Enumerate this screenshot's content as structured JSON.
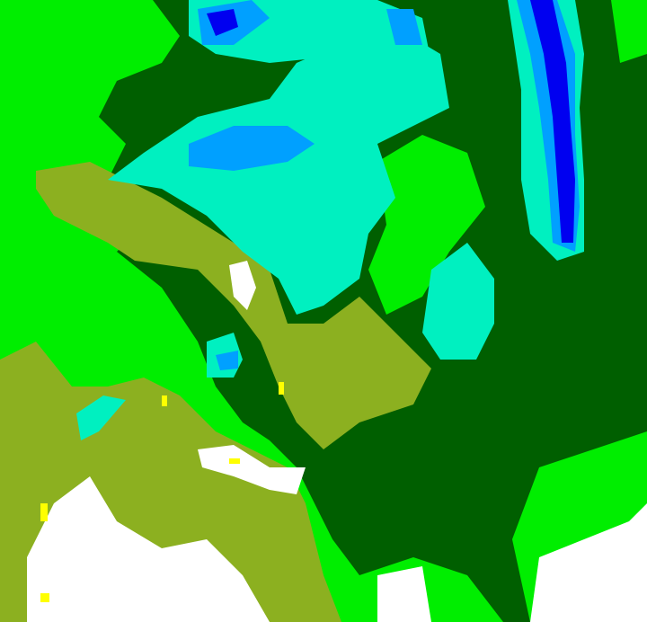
{
  "map": {
    "type": "classified raster",
    "palette": {
      "bright_green": "#00ee00",
      "dark_green": "#005f00",
      "olive": "#8cb020",
      "aquamarine": "#00f0c0",
      "light_blue": "#00a0ff",
      "blue": "#0000f0",
      "white": "#ffffff",
      "yellow": "#ffff00"
    }
  }
}
